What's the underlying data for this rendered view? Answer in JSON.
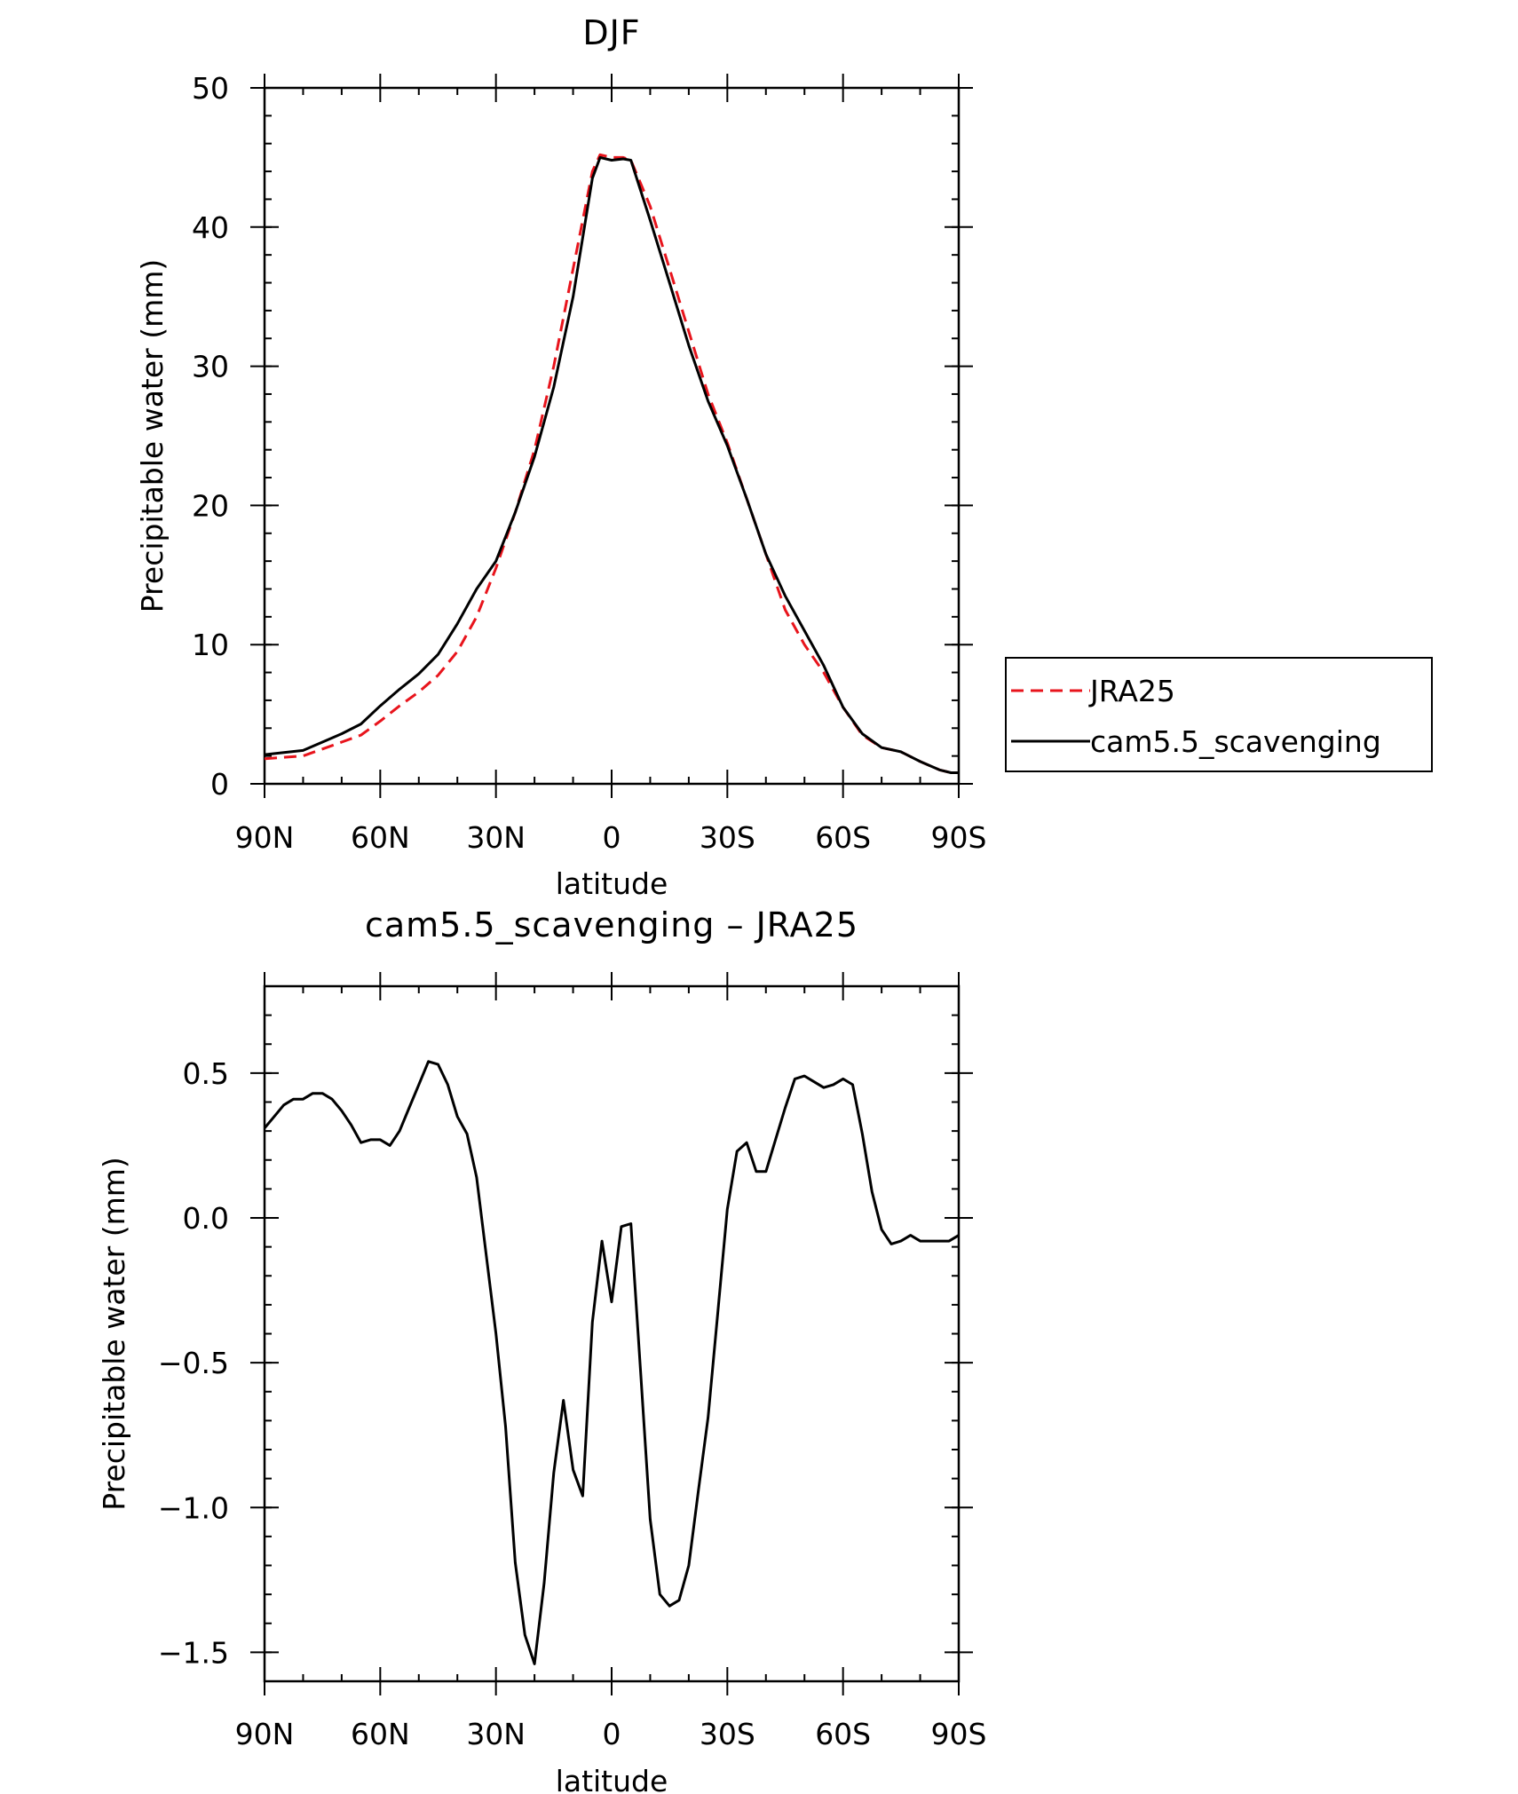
{
  "chart_data": [
    {
      "type": "line",
      "title": "DJF",
      "xlabel": "latitude",
      "ylabel": "Precipitable water (mm)",
      "xlim": [
        90,
        -90
      ],
      "ylim": [
        0,
        50
      ],
      "x_ticks": [
        90,
        60,
        30,
        0,
        -30,
        -60,
        -90
      ],
      "x_tick_labels": [
        "90N",
        "60N",
        "30N",
        "0",
        "30S",
        "60S",
        "90S"
      ],
      "y_ticks": [
        0,
        10,
        20,
        30,
        40,
        50
      ],
      "y_tick_labels": [
        "0",
        "10",
        "20",
        "30",
        "40",
        "50"
      ],
      "legend_position": "right",
      "series": [
        {
          "name": "JRA25",
          "color": "#e8141c",
          "dash": "dashed",
          "x": [
            90,
            80,
            75,
            70,
            65,
            60,
            55,
            50,
            45,
            40,
            35,
            30,
            25,
            20,
            15,
            10,
            5,
            3,
            0,
            -3,
            -5,
            -10,
            -15,
            -20,
            -25,
            -30,
            -35,
            -40,
            -45,
            -50,
            -55,
            -60,
            -65,
            -70,
            -75,
            -80,
            -85,
            -88,
            -90
          ],
          "y": [
            1.8,
            2.0,
            2.5,
            3.0,
            3.5,
            4.5,
            5.6,
            6.6,
            7.8,
            9.5,
            12.0,
            15.5,
            19.5,
            24.0,
            30.0,
            37.0,
            44.0,
            45.2,
            45.0,
            45.0,
            44.8,
            41.5,
            37.0,
            32.5,
            28.0,
            24.5,
            20.5,
            16.5,
            12.5,
            10.0,
            8.0,
            5.5,
            3.5,
            2.6,
            2.3,
            1.6,
            1.0,
            0.8,
            0.8
          ]
        },
        {
          "name": "cam5.5_scavenging",
          "color": "#000000",
          "dash": "solid",
          "x": [
            90,
            80,
            75,
            70,
            65,
            60,
            55,
            50,
            45,
            40,
            35,
            30,
            25,
            20,
            15,
            10,
            5,
            3,
            0,
            -3,
            -5,
            -10,
            -15,
            -20,
            -25,
            -30,
            -35,
            -40,
            -45,
            -50,
            -55,
            -60,
            -65,
            -70,
            -75,
            -80,
            -85,
            -88,
            -90
          ],
          "y": [
            2.1,
            2.4,
            3.0,
            3.6,
            4.3,
            5.6,
            6.8,
            7.9,
            9.3,
            11.5,
            14.0,
            16.0,
            19.5,
            23.5,
            28.5,
            35.0,
            43.5,
            45.0,
            44.8,
            44.9,
            44.8,
            40.5,
            36.0,
            31.5,
            27.5,
            24.3,
            20.5,
            16.5,
            13.5,
            11.0,
            8.5,
            5.5,
            3.6,
            2.6,
            2.3,
            1.6,
            1.0,
            0.8,
            0.8
          ]
        }
      ]
    },
    {
      "type": "line",
      "title": "cam5.5_scavenging – JRA25",
      "xlabel": "latitude",
      "ylabel": "Precipitable water (mm)",
      "xlim": [
        90,
        -90
      ],
      "ylim": [
        -1.6,
        0.8
      ],
      "x_ticks": [
        90,
        60,
        30,
        0,
        -30,
        -60,
        -90
      ],
      "x_tick_labels": [
        "90N",
        "60N",
        "30N",
        "0",
        "30S",
        "60S",
        "90S"
      ],
      "y_ticks": [
        0.5,
        0.0,
        -0.5,
        -1.0,
        -1.5
      ],
      "y_tick_labels": [
        "0.5",
        "0.0",
        "−0.5",
        "−1.0",
        "−1.5"
      ],
      "series": [
        {
          "color": "#000000",
          "dash": "solid",
          "x": [
            90,
            87.5,
            85,
            82.5,
            80,
            77.5,
            75,
            72.5,
            70,
            67.5,
            65,
            62.5,
            60,
            57.5,
            55,
            52.5,
            50,
            47.5,
            45,
            42.5,
            40,
            37.5,
            35,
            32.5,
            30,
            27.5,
            25,
            22.5,
            20,
            17.5,
            15,
            12.5,
            10,
            7.5,
            5,
            2.5,
            0,
            -2.5,
            -5,
            -7.5,
            -10,
            -12.5,
            -15,
            -17.5,
            -20,
            -22.5,
            -25,
            -27.5,
            -30,
            -32.5,
            -35,
            -37.5,
            -40,
            -42.5,
            -45,
            -47.5,
            -50,
            -52.5,
            -55,
            -57.5,
            -60,
            -62.5,
            -65,
            -67.5,
            -70,
            -72.5,
            -75,
            -77.5,
            -80,
            -82.5,
            -85,
            -87.5,
            -90
          ],
          "y": [
            0.31,
            0.35,
            0.39,
            0.41,
            0.41,
            0.43,
            0.43,
            0.41,
            0.37,
            0.32,
            0.26,
            0.27,
            0.27,
            0.25,
            0.3,
            0.38,
            0.46,
            0.54,
            0.53,
            0.46,
            0.35,
            0.29,
            0.14,
            -0.13,
            -0.4,
            -0.72,
            -1.19,
            -1.44,
            -1.54,
            -1.26,
            -0.88,
            -0.63,
            -0.87,
            -0.96,
            -0.36,
            -0.08,
            -0.29,
            -0.03,
            -0.02,
            -0.53,
            -1.04,
            -1.3,
            -1.34,
            -1.32,
            -1.2,
            -0.94,
            -0.69,
            -0.33,
            0.03,
            0.23,
            0.26,
            0.16,
            0.16,
            0.27,
            0.38,
            0.48,
            0.49,
            0.47,
            0.45,
            0.46,
            0.48,
            0.46,
            0.29,
            0.09,
            -0.04,
            -0.09,
            -0.08,
            -0.06,
            -0.08,
            -0.08,
            -0.08,
            -0.08,
            -0.06
          ]
        }
      ]
    }
  ]
}
